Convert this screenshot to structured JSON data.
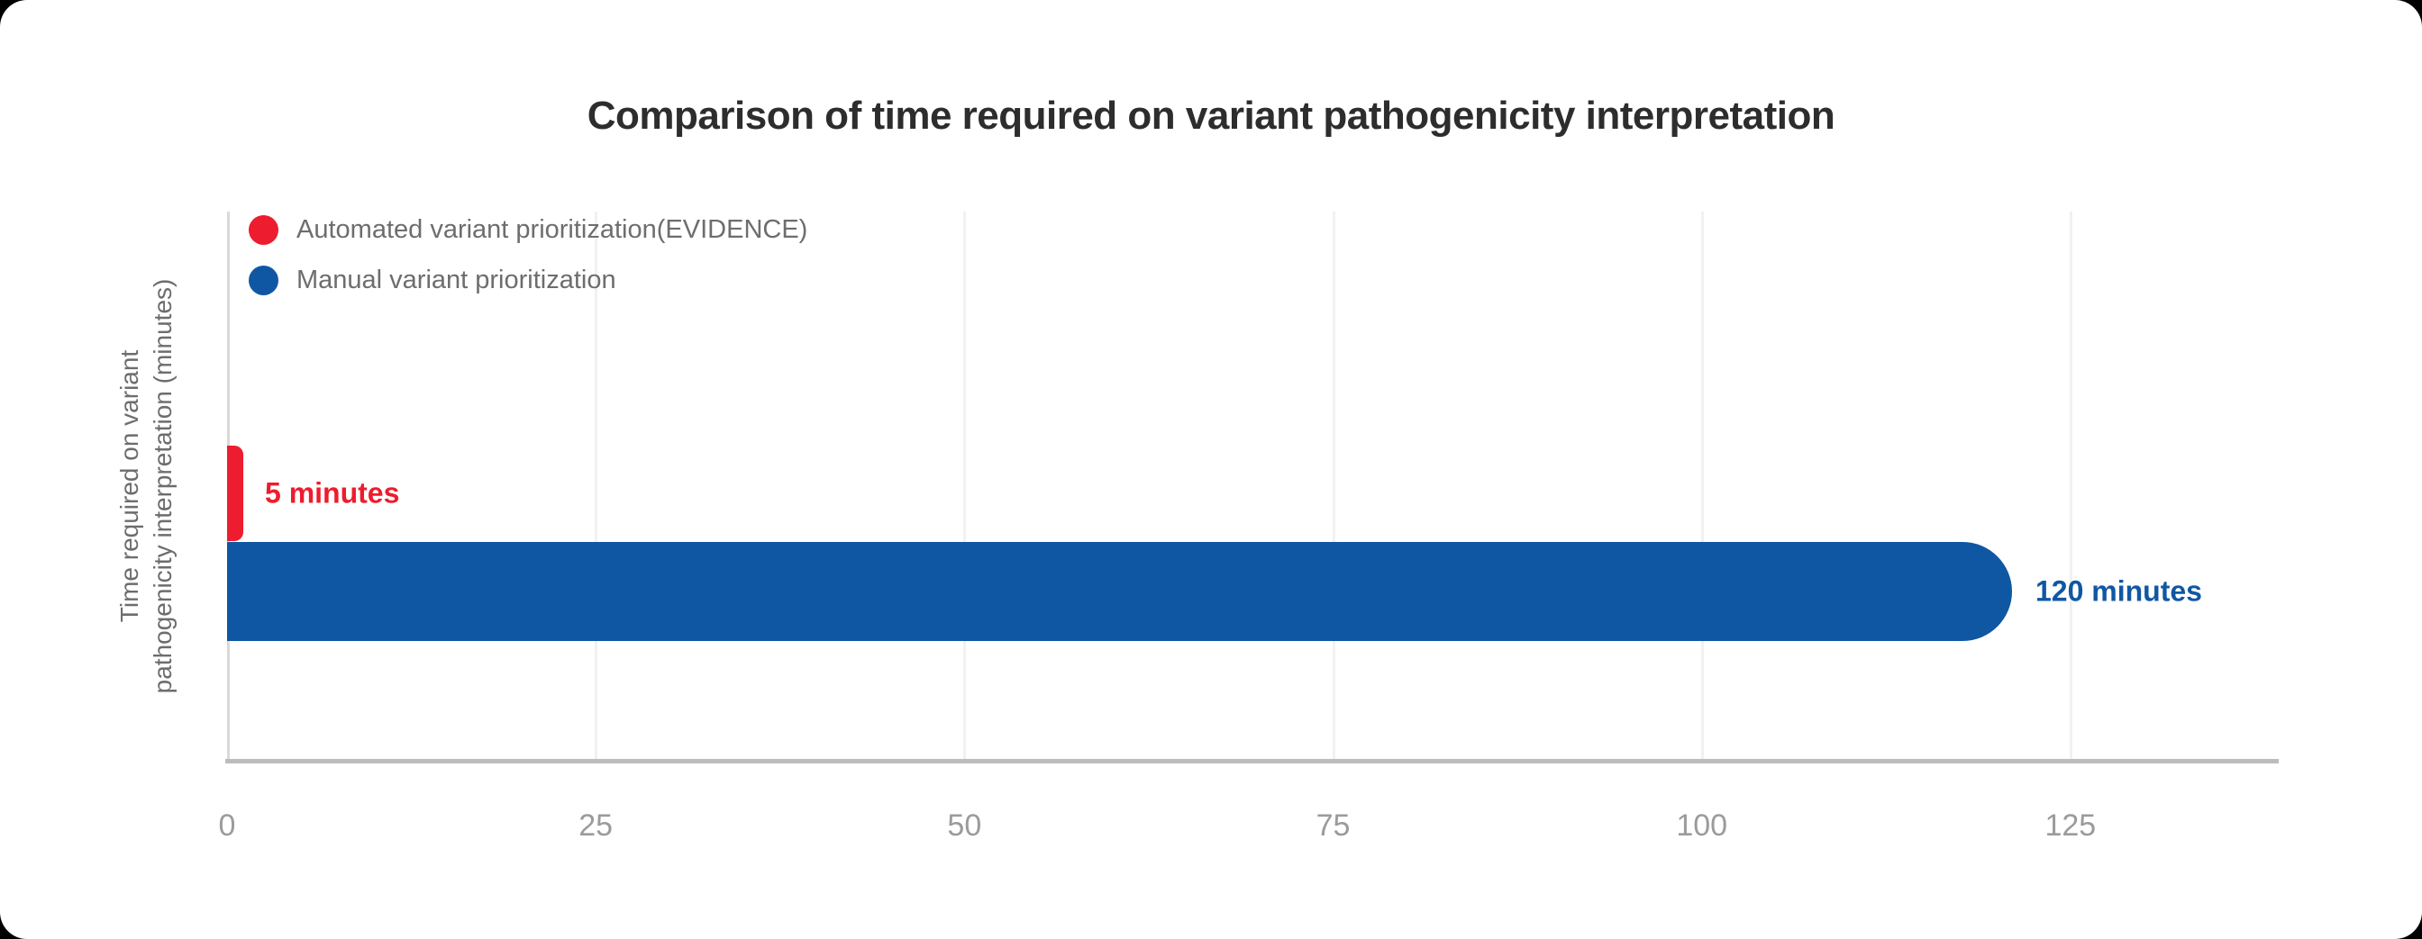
{
  "frame": {
    "page_background": "#000000",
    "card_background": "#ffffff"
  },
  "chart_data": {
    "type": "bar",
    "orientation": "horizontal",
    "title": "Comparison of time required on variant pathogenicity interpretation",
    "xlabel": "",
    "ylabel": "Time required on variant pathogenicity interpretation (minutes)",
    "ylabel_lines": [
      "Time required on variant",
      "pathogenicity interpretation (minutes)"
    ],
    "series": [
      {
        "name": "Automated variant prioritization(EVIDENCE)",
        "value": 5,
        "unit": "minutes",
        "data_label": "5 minutes",
        "color": "#ed1c2e"
      },
      {
        "name": "Manual variant prioritization",
        "value": 120,
        "unit": "minutes",
        "data_label": "120 minutes",
        "color": "#1057a3"
      }
    ],
    "x_ticks": [
      0,
      25,
      50,
      75,
      100,
      125
    ],
    "xlim": [
      0,
      139
    ],
    "grid": true,
    "legend_position": "top-left",
    "axis_colors": {
      "axis_line": "#bcbcbc",
      "grid_line": "#f1f1f1",
      "tick_text": "#9b9b9b",
      "label_text": "#6d6d6d",
      "title_text": "#2d2d2d"
    }
  }
}
